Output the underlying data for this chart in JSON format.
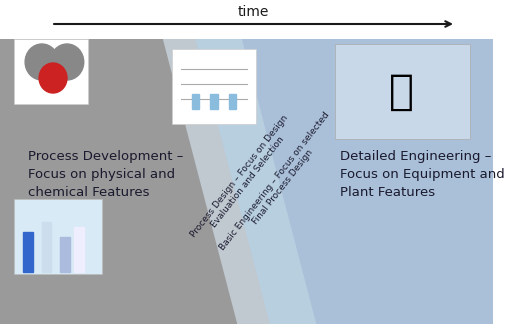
{
  "bg_color": "#ffffff",
  "left_bg_color": "#a0a0a0",
  "right_bg_color": "#aec6e0",
  "wedge1_color": "#b8c8d8",
  "wedge2_color": "#c8d8e8",
  "left_text": "Process Development –\nFocus on physical and\nchemical Features",
  "right_text": "Detailed Engineering –\nFocus on Equipment and\nPlant Features",
  "diag_text1": "Process Design – Focus on Design\nEvaluation and Selection",
  "diag_text2": "Basic Engineering – Focus on selected\nFinal Process Design",
  "arrow_label": "time",
  "left_color": "#8c8c8c",
  "right_color": "#8fb8d8",
  "strip1_color": "#b0bec5",
  "strip2_color": "#90a8c0",
  "text_color": "#1a1a2e",
  "arrow_color": "#1a1a1a"
}
